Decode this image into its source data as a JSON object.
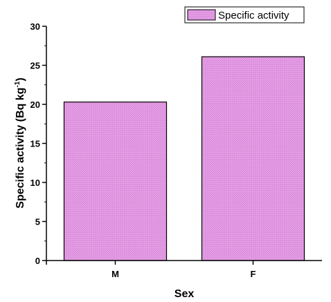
{
  "chart_data": {
    "type": "bar",
    "categories": [
      "M",
      "F"
    ],
    "series": [
      {
        "name": "Specific activity",
        "values": [
          20.3,
          26.1
        ]
      }
    ],
    "xlabel": "Sex",
    "ylabel": "Specific activity (Bq kg",
    "ylabel_sup": "-1",
    "ylabel_close": ")",
    "ylim": [
      0,
      30
    ],
    "yticks": [
      "0",
      "5",
      "10",
      "15",
      "20",
      "25",
      "30"
    ],
    "grid": false,
    "legend_position": "top-right",
    "bar_color": "#e69be6",
    "bar_hatch_color": "#c98ac9",
    "axis_color": "#000000"
  }
}
